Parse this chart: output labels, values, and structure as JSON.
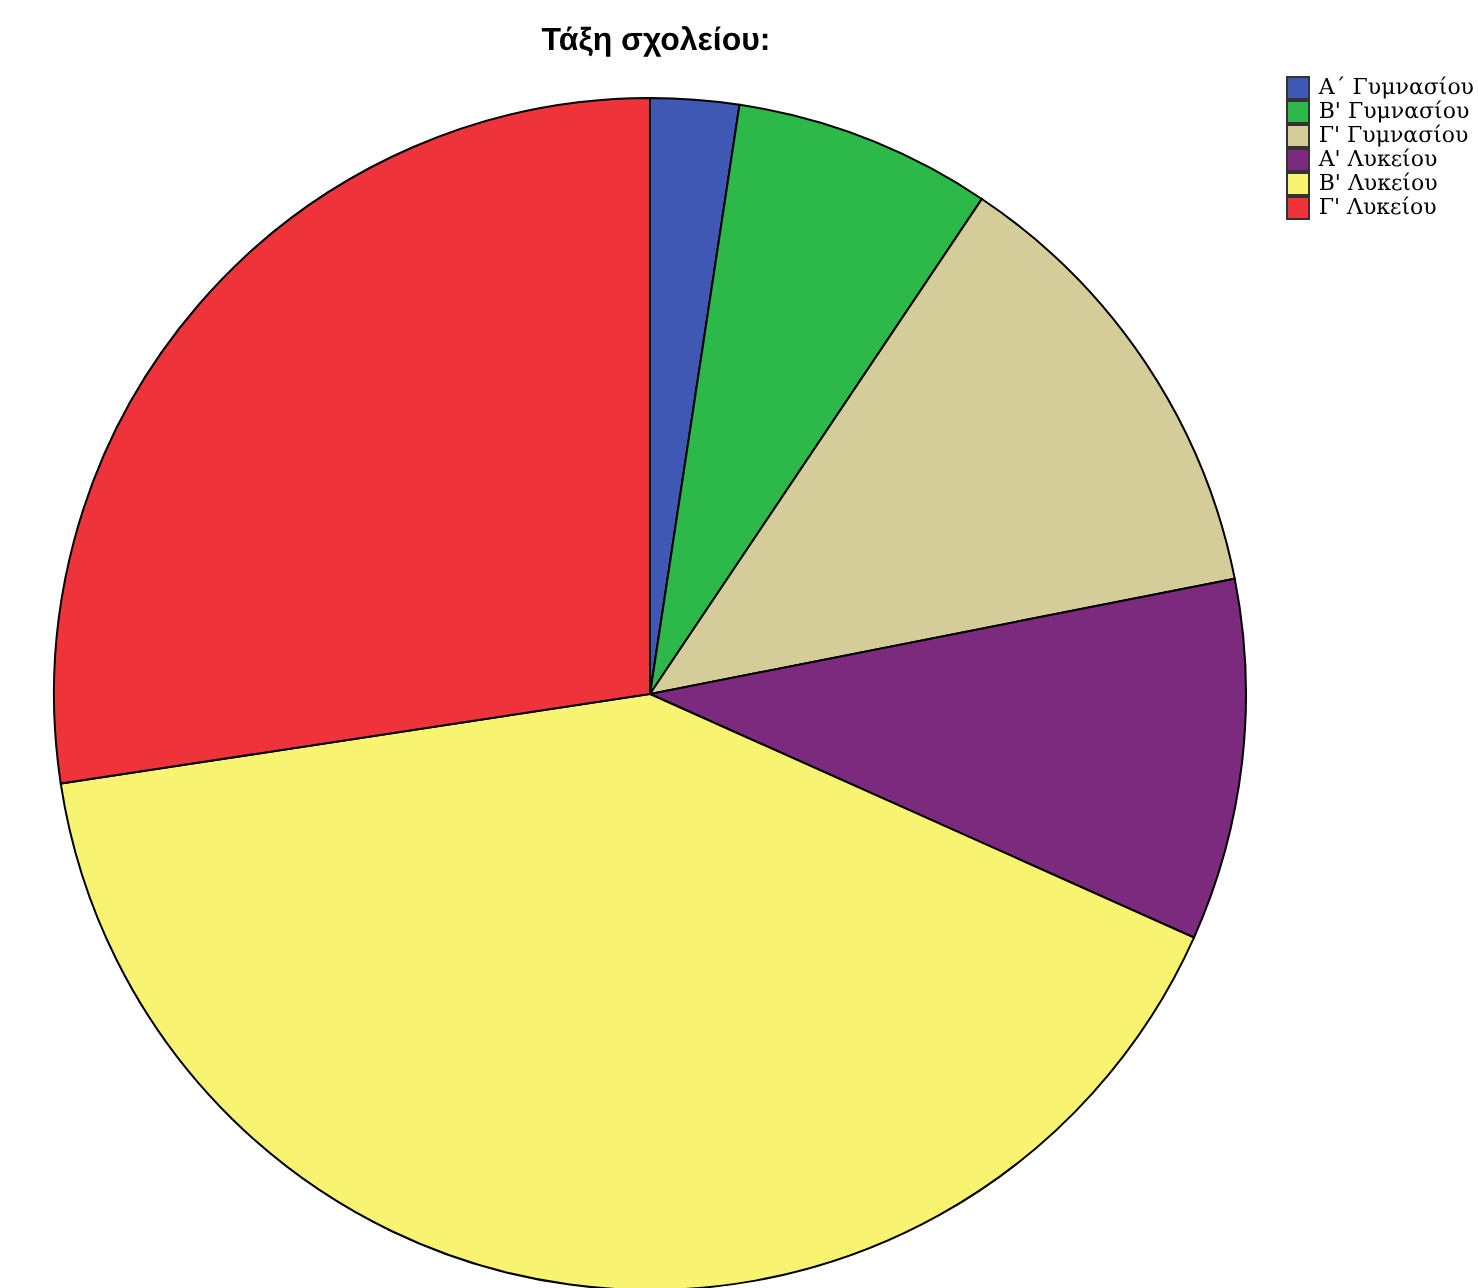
{
  "chart_data": {
    "type": "pie",
    "title": "Τάξη σχολείου:",
    "categories": [
      "Α΄ Γυμνασίου",
      "Β' Γυμνασίου",
      "Γ' Γυμνασίου",
      "Α' Λυκείου",
      "Β' Λυκείου",
      "Γ' Λυκείου"
    ],
    "values": [
      2.4,
      7.0,
      12.5,
      9.8,
      40.9,
      27.4
    ],
    "colors": [
      "#3e58b4",
      "#2db84a",
      "#d4cd9a",
      "#7b2a7e",
      "#f8f472",
      "#ee333b"
    ],
    "legend": "top right"
  }
}
